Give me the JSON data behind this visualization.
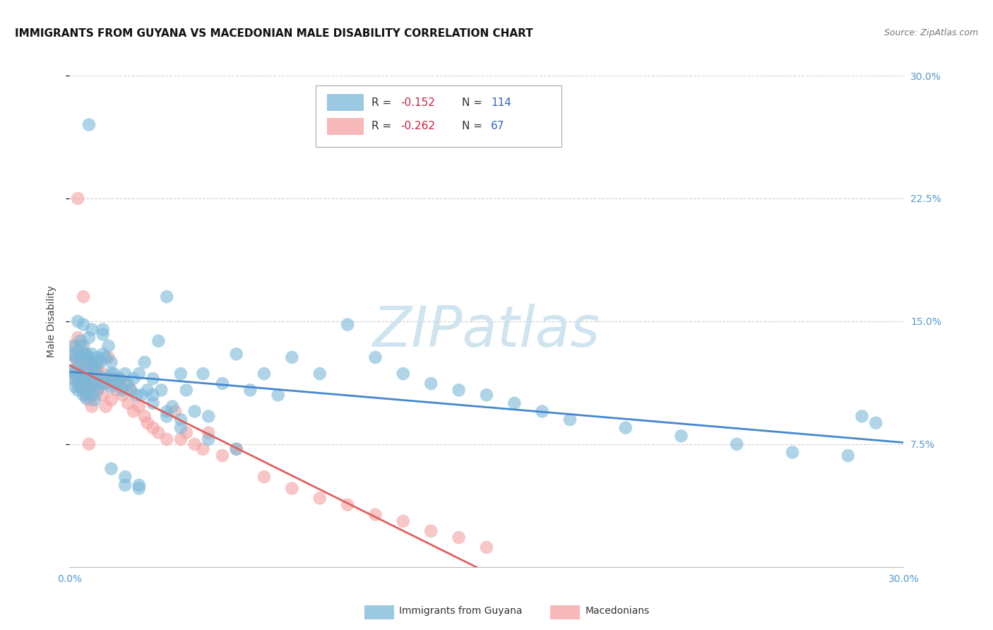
{
  "title": "IMMIGRANTS FROM GUYANA VS MACEDONIAN MALE DISABILITY CORRELATION CHART",
  "source": "Source: ZipAtlas.com",
  "ylabel": "Male Disability",
  "xlim": [
    0.0,
    0.3
  ],
  "ylim": [
    0.0,
    0.3
  ],
  "guyana_color": "#7ab8d9",
  "macedonian_color": "#f4a0a0",
  "guyana_line_color": "#4488cc",
  "macedonian_line_color": "#e06060",
  "watermark": "ZIPatlas",
  "watermark_color": "#d0e4f0",
  "background_color": "#ffffff",
  "guyana_x": [
    0.001,
    0.001,
    0.001,
    0.002,
    0.002,
    0.002,
    0.002,
    0.003,
    0.003,
    0.003,
    0.003,
    0.004,
    0.004,
    0.004,
    0.004,
    0.005,
    0.005,
    0.005,
    0.005,
    0.006,
    0.006,
    0.006,
    0.006,
    0.007,
    0.007,
    0.007,
    0.007,
    0.008,
    0.008,
    0.008,
    0.009,
    0.009,
    0.009,
    0.01,
    0.01,
    0.01,
    0.011,
    0.011,
    0.012,
    0.012,
    0.013,
    0.013,
    0.014,
    0.014,
    0.015,
    0.015,
    0.016,
    0.017,
    0.018,
    0.019,
    0.02,
    0.021,
    0.022,
    0.023,
    0.024,
    0.025,
    0.026,
    0.027,
    0.028,
    0.03,
    0.032,
    0.033,
    0.035,
    0.037,
    0.04,
    0.042,
    0.045,
    0.048,
    0.05,
    0.055,
    0.06,
    0.065,
    0.07,
    0.075,
    0.08,
    0.09,
    0.1,
    0.11,
    0.12,
    0.13,
    0.14,
    0.15,
    0.16,
    0.17,
    0.18,
    0.2,
    0.22,
    0.24,
    0.26,
    0.28,
    0.285,
    0.29,
    0.007,
    0.003,
    0.005,
    0.008,
    0.012,
    0.015,
    0.02,
    0.025,
    0.03,
    0.035,
    0.04,
    0.05,
    0.06,
    0.008,
    0.01,
    0.012,
    0.015,
    0.018,
    0.02,
    0.025,
    0.03,
    0.035,
    0.04
  ],
  "guyana_y": [
    0.13,
    0.12,
    0.115,
    0.135,
    0.128,
    0.118,
    0.11,
    0.132,
    0.122,
    0.115,
    0.108,
    0.138,
    0.128,
    0.118,
    0.11,
    0.135,
    0.125,
    0.115,
    0.105,
    0.13,
    0.12,
    0.112,
    0.103,
    0.14,
    0.128,
    0.118,
    0.108,
    0.125,
    0.115,
    0.105,
    0.122,
    0.112,
    0.102,
    0.128,
    0.118,
    0.108,
    0.125,
    0.112,
    0.13,
    0.115,
    0.128,
    0.112,
    0.135,
    0.115,
    0.125,
    0.11,
    0.118,
    0.112,
    0.115,
    0.108,
    0.118,
    0.112,
    0.108,
    0.115,
    0.105,
    0.118,
    0.105,
    0.125,
    0.108,
    0.115,
    0.138,
    0.108,
    0.165,
    0.098,
    0.118,
    0.108,
    0.095,
    0.118,
    0.092,
    0.112,
    0.13,
    0.108,
    0.118,
    0.105,
    0.128,
    0.118,
    0.148,
    0.128,
    0.118,
    0.112,
    0.108,
    0.105,
    0.1,
    0.095,
    0.09,
    0.085,
    0.08,
    0.075,
    0.07,
    0.068,
    0.092,
    0.088,
    0.27,
    0.15,
    0.148,
    0.145,
    0.142,
    0.06,
    0.055,
    0.05,
    0.105,
    0.095,
    0.09,
    0.078,
    0.072,
    0.13,
    0.125,
    0.145,
    0.118,
    0.112,
    0.05,
    0.048,
    0.1,
    0.092,
    0.085
  ],
  "macedonian_x": [
    0.001,
    0.001,
    0.002,
    0.002,
    0.003,
    0.003,
    0.003,
    0.004,
    0.004,
    0.004,
    0.005,
    0.005,
    0.005,
    0.006,
    0.006,
    0.006,
    0.007,
    0.007,
    0.007,
    0.008,
    0.008,
    0.008,
    0.009,
    0.009,
    0.01,
    0.01,
    0.011,
    0.012,
    0.012,
    0.013,
    0.013,
    0.014,
    0.015,
    0.015,
    0.016,
    0.017,
    0.018,
    0.019,
    0.02,
    0.021,
    0.022,
    0.023,
    0.025,
    0.027,
    0.028,
    0.03,
    0.032,
    0.035,
    0.038,
    0.04,
    0.042,
    0.045,
    0.048,
    0.05,
    0.055,
    0.06,
    0.07,
    0.08,
    0.09,
    0.1,
    0.11,
    0.12,
    0.13,
    0.14,
    0.15,
    0.003,
    0.005,
    0.007
  ],
  "macedonian_y": [
    0.135,
    0.12,
    0.128,
    0.115,
    0.14,
    0.125,
    0.112,
    0.135,
    0.122,
    0.11,
    0.13,
    0.118,
    0.108,
    0.128,
    0.115,
    0.105,
    0.125,
    0.112,
    0.102,
    0.122,
    0.11,
    0.098,
    0.118,
    0.105,
    0.122,
    0.108,
    0.115,
    0.118,
    0.105,
    0.112,
    0.098,
    0.128,
    0.115,
    0.102,
    0.112,
    0.108,
    0.115,
    0.105,
    0.112,
    0.1,
    0.108,
    0.095,
    0.098,
    0.092,
    0.088,
    0.085,
    0.082,
    0.078,
    0.095,
    0.078,
    0.082,
    0.075,
    0.072,
    0.082,
    0.068,
    0.072,
    0.055,
    0.048,
    0.042,
    0.038,
    0.032,
    0.028,
    0.022,
    0.018,
    0.012,
    0.225,
    0.165,
    0.075
  ],
  "title_fontsize": 11,
  "source_fontsize": 9,
  "axis_label_fontsize": 10,
  "tick_fontsize": 10
}
